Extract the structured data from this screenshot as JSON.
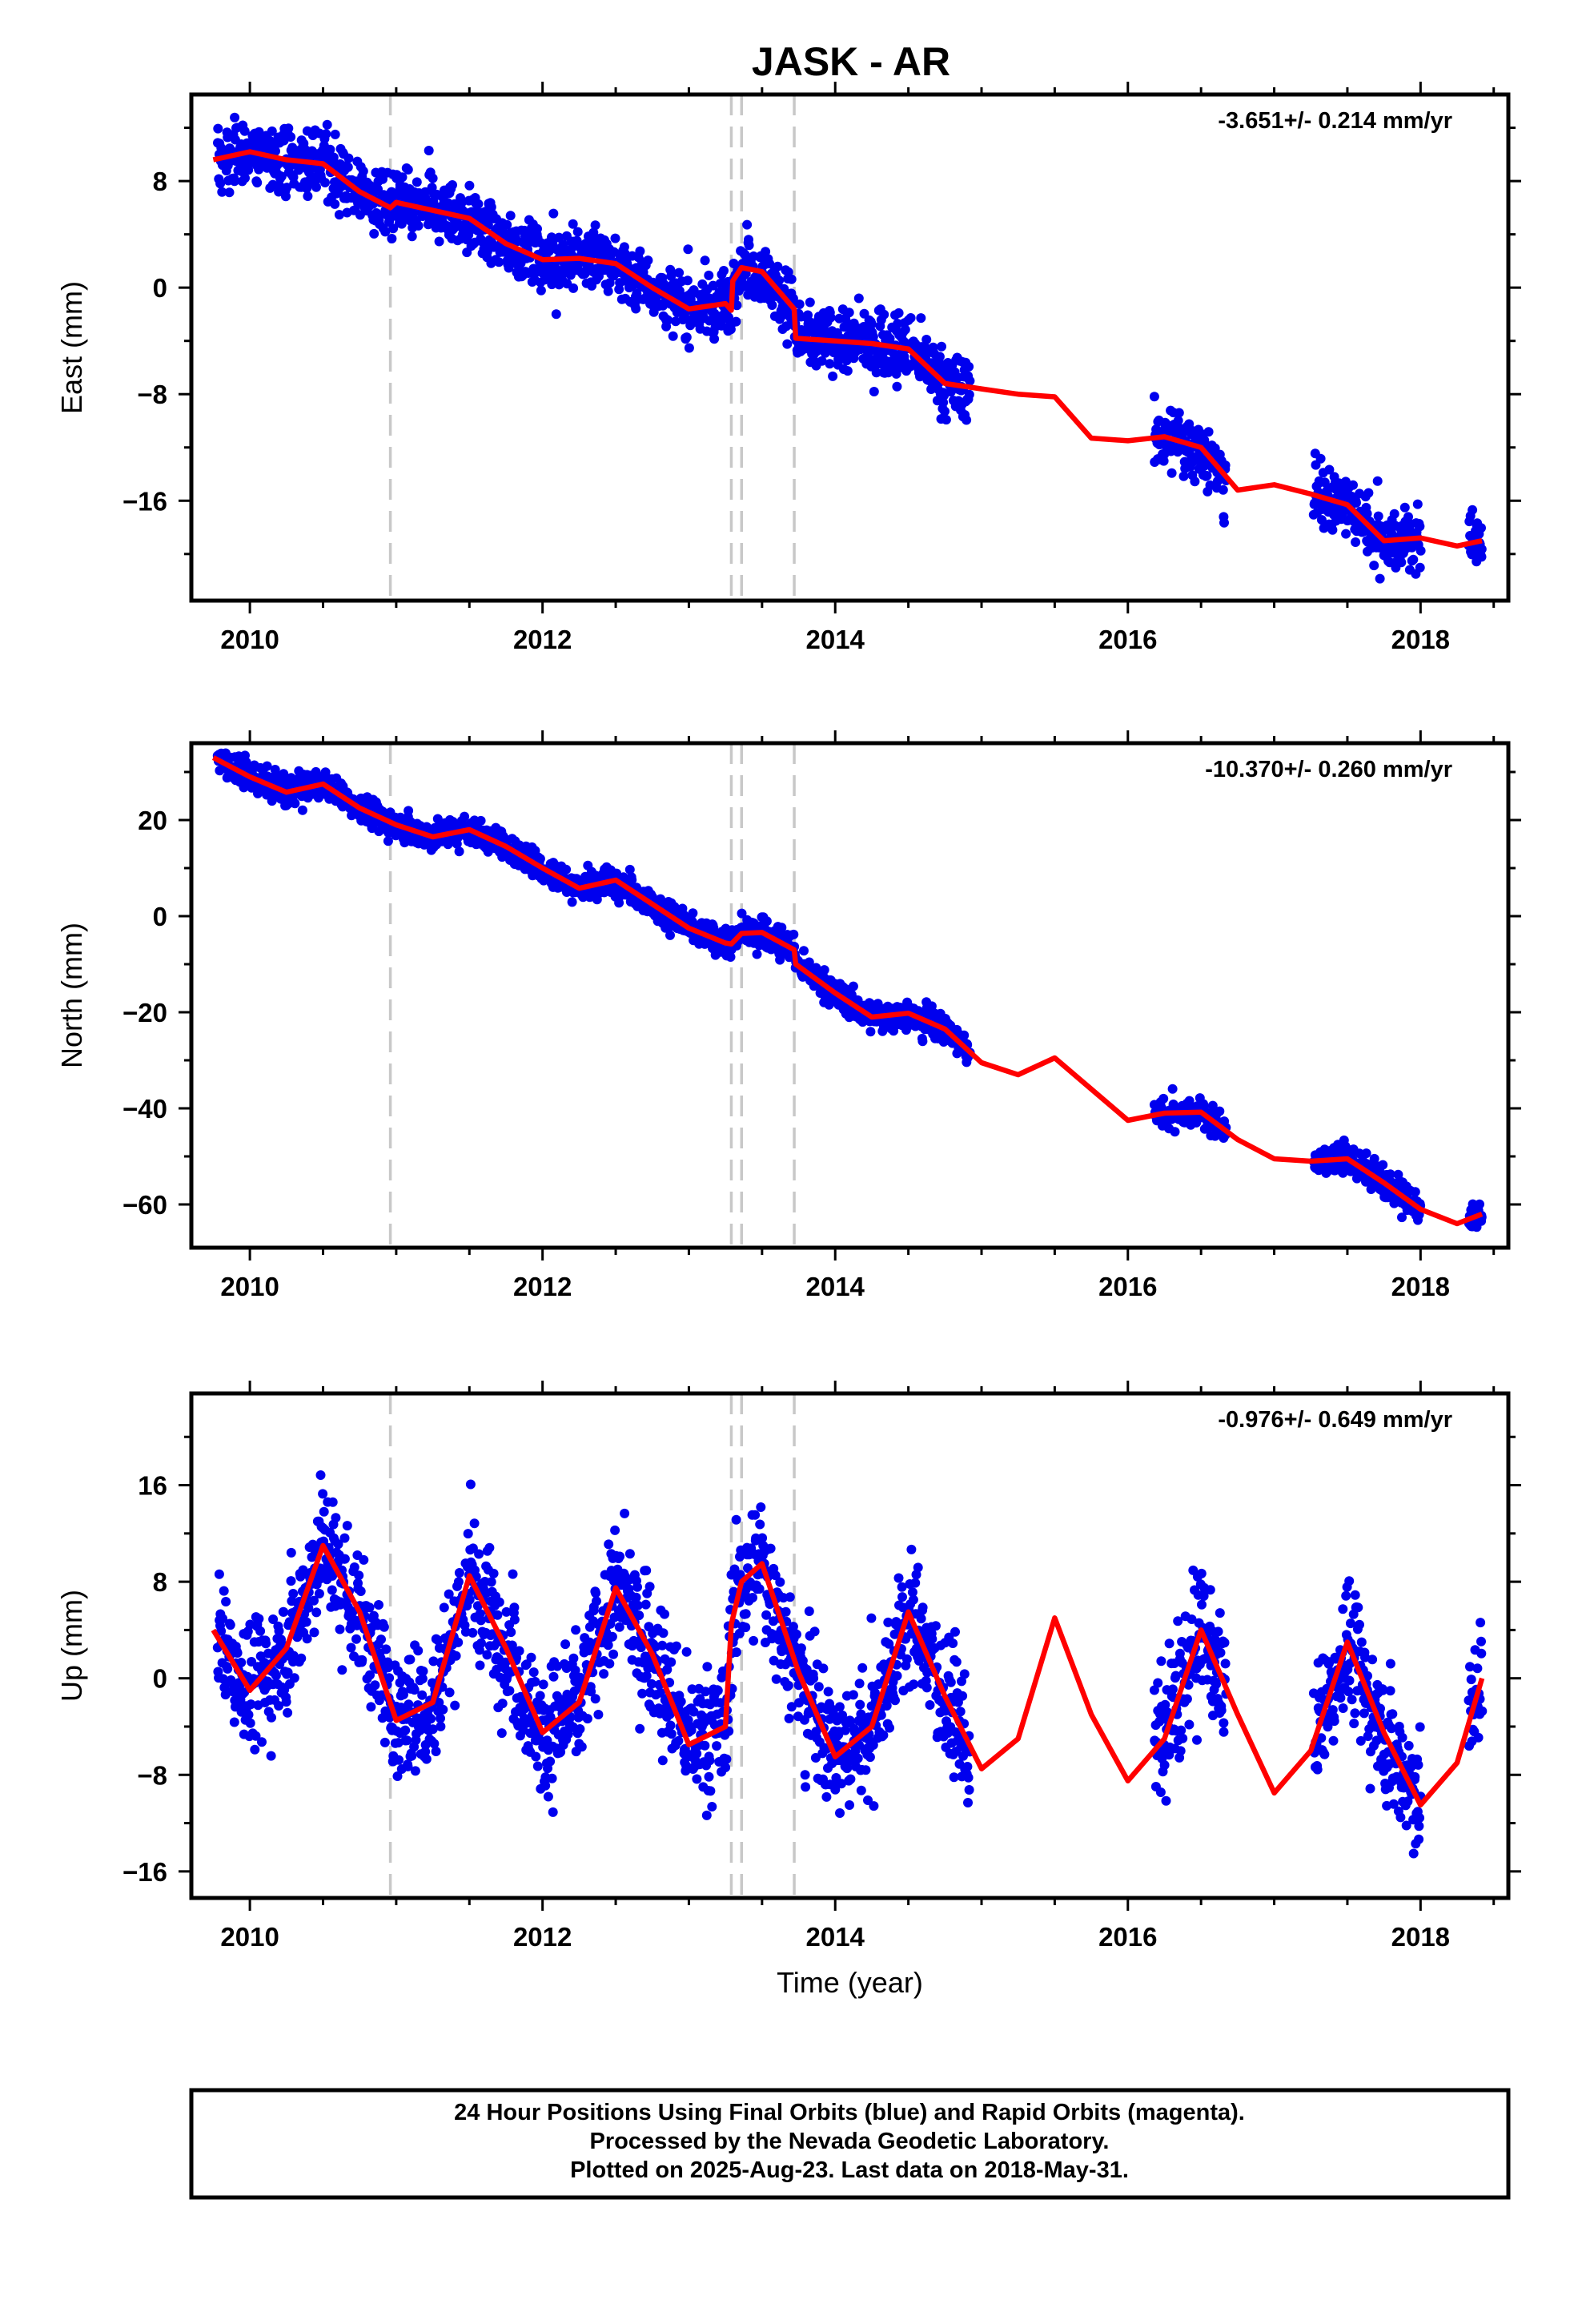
{
  "chart_data": [
    {
      "type": "scatter",
      "title": "JASK - AR",
      "ylabel": "East (mm)",
      "xlabel": "",
      "rate_label": "-3.651+/- 0.214 mm/yr",
      "xlim": [
        2009.6,
        2018.6
      ],
      "ylim": [
        -23.5,
        14.5
      ],
      "xticks": [
        2010,
        2012,
        2014,
        2016,
        2018
      ],
      "yticks": [
        8,
        0,
        -8,
        -16
      ],
      "grid": false,
      "scatter_color": "#0000ee",
      "fit_color": "#ff0000",
      "steps_x": [
        2010.96,
        2013.29,
        2013.36,
        2013.72
      ],
      "data_intervals": [
        [
          2009.78,
          2014.92
        ],
        [
          2016.18,
          2016.67
        ],
        [
          2017.27,
          2018.0
        ],
        [
          2018.33,
          2018.42
        ]
      ],
      "fit_curve": {
        "x": [
          2009.75,
          2010.0,
          2010.25,
          2010.5,
          2010.75,
          2010.96,
          2011.0,
          2011.25,
          2011.5,
          2011.75,
          2012.0,
          2012.25,
          2012.5,
          2012.75,
          2013.0,
          2013.25,
          2013.29,
          2013.3,
          2013.36,
          2013.5,
          2013.72,
          2013.73,
          2014.0,
          2014.25,
          2014.5,
          2014.75,
          2015.0,
          2015.25,
          2015.5,
          2015.75,
          2016.0,
          2016.25,
          2016.5,
          2016.75,
          2017.0,
          2017.25,
          2017.5,
          2017.75,
          2018.0,
          2018.25,
          2018.42
        ],
        "y": [
          9.6,
          10.2,
          9.6,
          9.3,
          7.2,
          6.0,
          6.4,
          5.8,
          5.2,
          3.3,
          2.1,
          2.2,
          1.8,
          0.0,
          -1.6,
          -1.2,
          -1.7,
          0.5,
          1.5,
          1.2,
          -1.6,
          -3.8,
          -4.0,
          -4.2,
          -4.6,
          -7.2,
          -7.6,
          -8.0,
          -8.2,
          -11.3,
          -11.5,
          -11.2,
          -12.0,
          -15.2,
          -14.8,
          -15.5,
          -16.3,
          -19.0,
          -18.8,
          -19.4,
          -19.0
        ]
      }
    },
    {
      "type": "scatter",
      "title": "",
      "ylabel": "North (mm)",
      "xlabel": "",
      "rate_label": "-10.370+/- 0.260 mm/yr",
      "xlim": [
        2009.6,
        2018.6
      ],
      "ylim": [
        -69,
        36
      ],
      "xticks": [
        2010,
        2012,
        2014,
        2016,
        2018
      ],
      "yticks": [
        20,
        0,
        -20,
        -40,
        -60
      ],
      "grid": false,
      "scatter_color": "#0000ee",
      "fit_color": "#ff0000",
      "steps_x": [
        2010.96,
        2013.29,
        2013.36,
        2013.72
      ],
      "data_intervals": [
        [
          2009.78,
          2014.92
        ],
        [
          2016.18,
          2016.67
        ],
        [
          2017.27,
          2018.0
        ],
        [
          2018.33,
          2018.42
        ]
      ],
      "fit_curve": {
        "x": [
          2009.75,
          2010.0,
          2010.25,
          2010.5,
          2010.75,
          2011.0,
          2011.25,
          2011.5,
          2011.75,
          2012.0,
          2012.25,
          2012.5,
          2012.75,
          2013.0,
          2013.25,
          2013.29,
          2013.36,
          2013.5,
          2013.72,
          2013.73,
          2014.0,
          2014.25,
          2014.5,
          2014.75,
          2015.0,
          2015.25,
          2015.5,
          2015.75,
          2016.0,
          2016.25,
          2016.5,
          2016.75,
          2017.0,
          2017.25,
          2017.5,
          2017.75,
          2018.0,
          2018.25,
          2018.42
        ],
        "y": [
          33.0,
          29.0,
          25.8,
          27.5,
          22.5,
          19.0,
          16.5,
          18.0,
          14.5,
          10.0,
          5.8,
          7.5,
          2.5,
          -2.5,
          -5.6,
          -5.8,
          -3.6,
          -3.4,
          -7.0,
          -10.0,
          -16.0,
          -21.0,
          -20.2,
          -23.5,
          -30.5,
          -33.0,
          -29.5,
          -36.0,
          -42.5,
          -41.0,
          -40.8,
          -46.5,
          -50.5,
          -51.0,
          -50.5,
          -55.5,
          -61.0,
          -64.0,
          -62.0
        ]
      }
    },
    {
      "type": "scatter",
      "title": "",
      "ylabel": "Up (mm)",
      "xlabel": "Time (year)",
      "rate_label": "-0.976+/- 0.649 mm/yr",
      "xlim": [
        2009.6,
        2018.6
      ],
      "ylim": [
        -18.2,
        23.6
      ],
      "xticks": [
        2010,
        2012,
        2014,
        2016,
        2018
      ],
      "yticks": [
        16,
        8,
        0,
        -8,
        -16
      ],
      "grid": false,
      "scatter_color": "#0000ee",
      "fit_color": "#ff0000",
      "steps_x": [
        2010.96,
        2013.29,
        2013.36,
        2013.72
      ],
      "data_intervals": [
        [
          2009.78,
          2014.92
        ],
        [
          2016.18,
          2016.67
        ],
        [
          2017.27,
          2018.0
        ],
        [
          2018.33,
          2018.42
        ]
      ],
      "fit_curve": {
        "x": [
          2009.75,
          2010.0,
          2010.25,
          2010.5,
          2010.75,
          2011.0,
          2011.25,
          2011.5,
          2011.75,
          2012.0,
          2012.25,
          2012.5,
          2012.75,
          2013.0,
          2013.25,
          2013.29,
          2013.36,
          2013.5,
          2013.75,
          2014.0,
          2014.25,
          2014.5,
          2014.75,
          2015.0,
          2015.25,
          2015.5,
          2015.75,
          2016.0,
          2016.25,
          2016.5,
          2016.75,
          2017.0,
          2017.25,
          2017.5,
          2017.75,
          2018.0,
          2018.25,
          2018.42
        ],
        "y": [
          4.0,
          -1.0,
          2.5,
          11.0,
          5.5,
          -3.5,
          -2.0,
          8.5,
          2.5,
          -4.5,
          -2.0,
          7.5,
          2.0,
          -5.5,
          -4.0,
          4.5,
          8.0,
          9.5,
          0.5,
          -6.5,
          -4.0,
          5.5,
          -1.5,
          -7.5,
          -5.0,
          5.0,
          -3.0,
          -8.5,
          -5.0,
          4.0,
          -3.0,
          -9.5,
          -6.0,
          3.0,
          -4.5,
          -10.5,
          -7.0,
          0.0
        ]
      }
    }
  ],
  "footer": {
    "line1": "24 Hour Positions Using Final Orbits (blue) and Rapid Orbits (magenta).",
    "line2": "Processed by the Nevada Geodetic Laboratory.",
    "line3": "Plotted on 2025-Aug-23. Last data on 2018-May-31."
  }
}
